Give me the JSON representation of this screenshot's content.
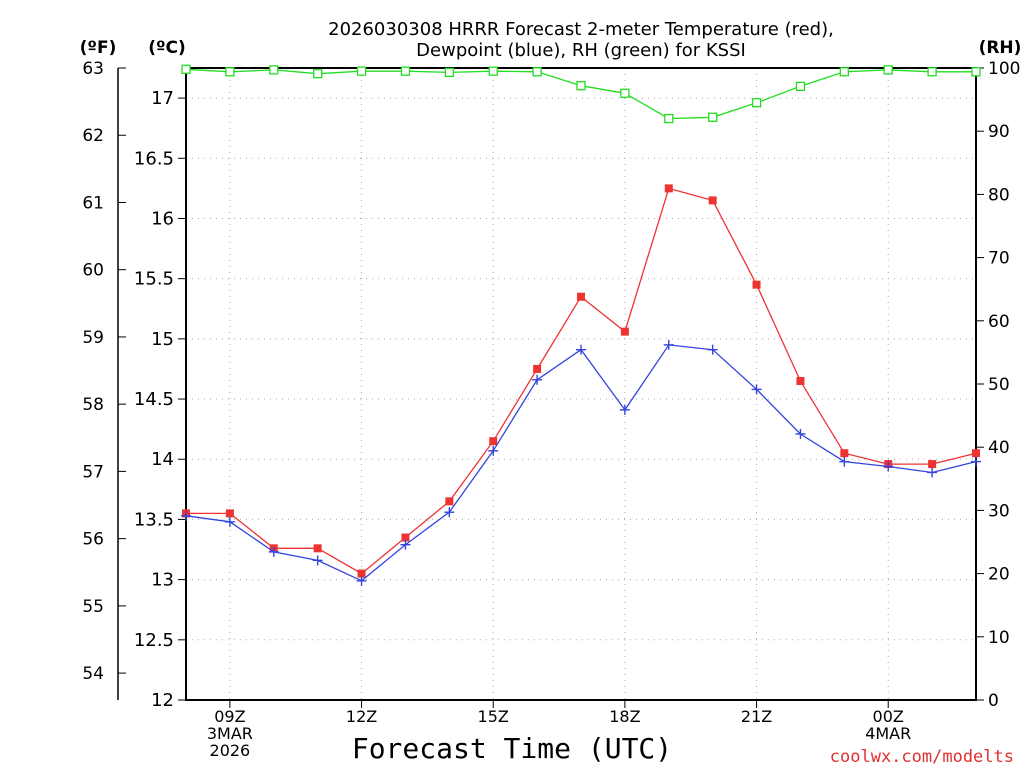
{
  "chart_data": {
    "type": "line",
    "title_line1": "2026030308 HRRR Forecast 2-meter Temperature (red),",
    "title_line2": "Dewpoint (blue), RH (green) for KSSI",
    "xlabel": "Forecast Time (UTC)",
    "credit": "coolwx.com/modelts",
    "axes": {
      "fahrenheit": {
        "label": "(ºF)",
        "ticks": [
          "63",
          "62",
          "61",
          "60",
          "59",
          "58",
          "57",
          "56",
          "55",
          "54"
        ],
        "range": [
          53.6,
          63.0
        ]
      },
      "celsius": {
        "label": "(ºC)",
        "ticks": [
          "17",
          "16.5",
          "16",
          "15.5",
          "15",
          "14.5",
          "14",
          "13.5",
          "13",
          "12.5",
          "12"
        ],
        "range": [
          12,
          17.25
        ]
      },
      "rh": {
        "label": "(RH)",
        "ticks": [
          "100",
          "90",
          "80",
          "70",
          "60",
          "50",
          "40",
          "30",
          "20",
          "10",
          "0"
        ],
        "range": [
          0,
          100
        ]
      }
    },
    "x_ticks": [
      {
        "hour": 1,
        "lines": [
          "09Z",
          "3MAR",
          "2026"
        ]
      },
      {
        "hour": 4,
        "lines": [
          "12Z"
        ]
      },
      {
        "hour": 7,
        "lines": [
          "15Z"
        ]
      },
      {
        "hour": 10,
        "lines": [
          "18Z"
        ]
      },
      {
        "hour": 13,
        "lines": [
          "21Z"
        ]
      },
      {
        "hour": 16,
        "lines": [
          "00Z",
          "4MAR"
        ]
      }
    ],
    "x": [
      0,
      1,
      2,
      3,
      4,
      5,
      6,
      7,
      8,
      9,
      10,
      11,
      12,
      13,
      14,
      15,
      16,
      17,
      18
    ],
    "x_range": [
      0,
      18
    ],
    "series": [
      {
        "name": "Temperature",
        "unit": "C",
        "color": "#ee3333",
        "marker": "square",
        "values": [
          13.55,
          13.55,
          13.26,
          13.26,
          13.05,
          13.35,
          13.65,
          14.15,
          14.75,
          15.35,
          15.06,
          16.25,
          16.15,
          15.45,
          14.65,
          14.05,
          13.96,
          13.96,
          14.05
        ]
      },
      {
        "name": "Dewpoint",
        "unit": "C",
        "color": "#3344dd",
        "marker": "plus",
        "values": [
          13.53,
          13.48,
          13.23,
          13.16,
          12.99,
          13.29,
          13.56,
          14.07,
          14.66,
          14.91,
          14.41,
          14.95,
          14.91,
          14.58,
          14.21,
          13.98,
          13.94,
          13.89,
          13.98
        ]
      },
      {
        "name": "RH",
        "unit": "%",
        "color": "#22dd22",
        "marker": "hollow-square",
        "values": [
          99.8,
          99.4,
          99.7,
          99.1,
          99.5,
          99.5,
          99.3,
          99.5,
          99.4,
          97.2,
          96.0,
          92.0,
          92.2,
          94.5,
          97.1,
          99.4,
          99.7,
          99.4,
          99.4
        ]
      }
    ]
  }
}
